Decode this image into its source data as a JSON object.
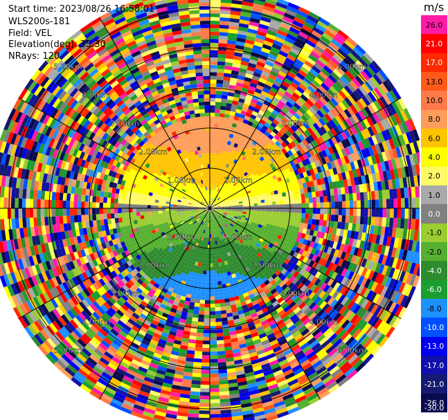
{
  "header": {
    "start_time": "Start time: 2023/08/26 16:58:01",
    "site": "WLS200s-181",
    "field": "Field: VEL",
    "elevation": "Elevation(deg): 35.30",
    "nrays": "NRays: 120"
  },
  "colorbar": {
    "unit": "m/s",
    "ticks": [
      "26.0",
      "21.0",
      "17.0",
      "13.0",
      "10.0",
      "8.0",
      "6.0",
      "4.0",
      "2.0",
      "1.0",
      "0.0",
      "-1.0",
      "-2.0",
      "-4.0",
      "-6.0",
      "-8.0",
      "-10.0",
      "-13.0",
      "-17.0",
      "-21.0",
      "-26.0",
      "-30.0"
    ],
    "colors": [
      "#ff1aa6",
      "#ff0000",
      "#ff2a00",
      "#ff5a1a",
      "#ff7a4a",
      "#ff9e5a",
      "#ffc400",
      "#ffff00",
      "#fffa66",
      "#a9a9a9",
      "#808080",
      "#9acd32",
      "#55b030",
      "#2e8b2e",
      "#1a9e30",
      "#1e90ff",
      "#0050ff",
      "#0000ee",
      "#1010aa",
      "#151a70",
      "#0a0a50"
    ]
  },
  "chart_data": {
    "type": "heatmap",
    "projection": "ppi-polar",
    "title": "",
    "nrays": 120,
    "elevation_deg": 35.3,
    "range_rings_km": [
      1.0,
      2.0,
      3.0,
      4.0,
      5.0
    ],
    "range_labels": [
      "1.00km",
      "2.00km",
      "3.00km",
      "4.00km",
      "5.00km"
    ],
    "max_range_km": 5.5,
    "units": "m/s",
    "grid": true
  }
}
